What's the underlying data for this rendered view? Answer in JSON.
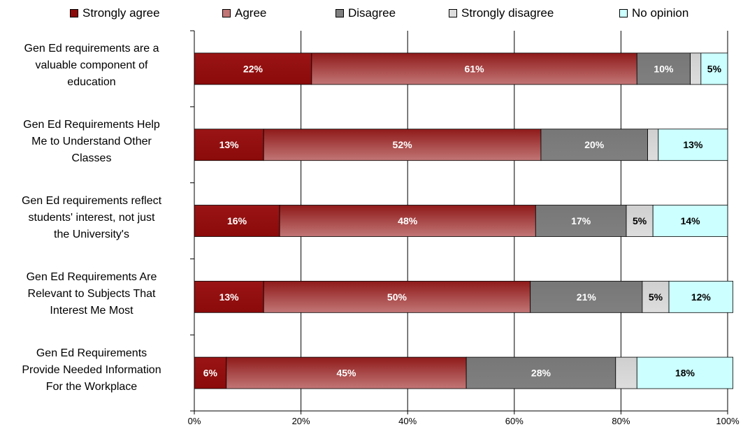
{
  "chart_data": {
    "type": "bar",
    "orientation": "horizontal",
    "stacked": true,
    "categories": [
      "Gen Ed requirements are a valuable component of education",
      "Gen Ed Requirements Help Me to Understand Other Classes",
      "Gen Ed requirements reflect students' interest, not just the University's",
      "Gen Ed Requirements Are Relevant to Subjects That Interest Me Most",
      "Gen Ed Requirements Provide Needed Information For the Workplace"
    ],
    "category_lines": [
      [
        "Gen Ed requirements are a",
        "valuable component of",
        "education"
      ],
      [
        "Gen Ed Requirements Help",
        "Me to Understand Other",
        "Classes"
      ],
      [
        "Gen Ed requirements reflect",
        "students' interest, not just",
        "the University's"
      ],
      [
        "Gen Ed Requirements Are",
        "Relevant to Subjects That",
        "Interest Me Most"
      ],
      [
        "Gen Ed Requirements",
        "Provide Needed Information",
        "For the Workplace"
      ]
    ],
    "series": [
      {
        "name": "Strongly agree",
        "color": "#8b0a0a",
        "gradient": "#9a1515",
        "label_color": "#ffffff",
        "values": [
          22,
          13,
          16,
          13,
          6
        ],
        "labels": [
          "22%",
          "13%",
          "16%",
          "13%",
          "6%"
        ]
      },
      {
        "name": "Agree",
        "color": "#c27676",
        "gradient": "#8f1a1a",
        "label_color": "#ffffff",
        "values": [
          61,
          52,
          48,
          50,
          45
        ],
        "labels": [
          "61%",
          "52%",
          "48%",
          "50%",
          "45%"
        ]
      },
      {
        "name": "Disagree",
        "color": "#808080",
        "gradient": "#777777",
        "label_color": "#ffffff",
        "values": [
          10,
          20,
          17,
          21,
          28
        ],
        "labels": [
          "10%",
          "20%",
          "17%",
          "21%",
          "28%"
        ]
      },
      {
        "name": "Strongly disagree",
        "color": "#dddddd",
        "gradient": "#cfcfcf",
        "label_color": "#000000",
        "values": [
          2,
          2,
          5,
          5,
          4
        ],
        "labels": [
          "",
          "",
          "5%",
          "5%",
          ""
        ]
      },
      {
        "name": "No opinion",
        "color": "#ccffff",
        "gradient": "#ccffff",
        "label_color": "#000000",
        "values": [
          5,
          13,
          14,
          12,
          18
        ],
        "labels": [
          "5%",
          "13%",
          "14%",
          "12%",
          "18%"
        ]
      }
    ],
    "xlim": [
      0,
      100
    ],
    "x_ticks": [
      0,
      20,
      40,
      60,
      80,
      100
    ],
    "x_tick_labels": [
      "0%",
      "20%",
      "40%",
      "60%",
      "80%",
      "100%"
    ],
    "grid": true,
    "legend_position": "top"
  }
}
